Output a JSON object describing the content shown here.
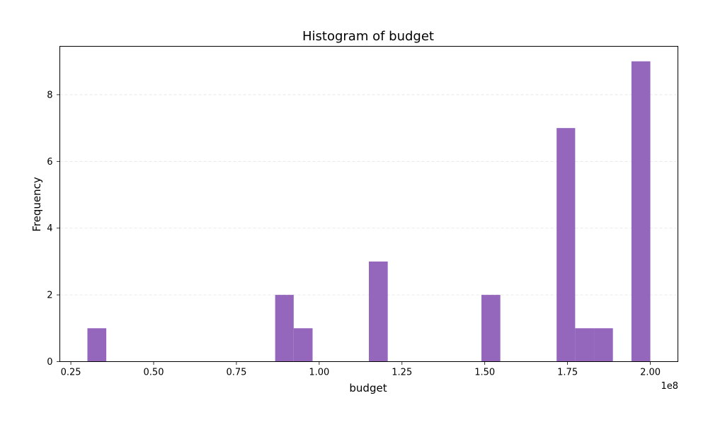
{
  "chart_data": {
    "type": "bar",
    "subtype": "histogram",
    "title": "Histogram of budget",
    "xlabel": "budget",
    "ylabel": "Frequency",
    "x_offset_label": "1e8",
    "xlim": [
      0.2167,
      2.0833
    ],
    "ylim": [
      0,
      9.45
    ],
    "x_ticks": [
      0.25,
      0.5,
      0.75,
      1.0,
      1.25,
      1.5,
      1.75,
      2.0
    ],
    "x_tick_labels": [
      "0.25",
      "0.50",
      "0.75",
      "1.00",
      "1.25",
      "1.50",
      "1.75",
      "2.00"
    ],
    "y_ticks": [
      0,
      2,
      4,
      6,
      8
    ],
    "y_tick_labels": [
      "0",
      "2",
      "4",
      "6",
      "8"
    ],
    "grid": {
      "y": true,
      "x": false,
      "style": "dashed"
    },
    "bar_color": "#9467bd",
    "bins": [
      {
        "x0": 0.3,
        "x1": 0.357,
        "count": 1
      },
      {
        "x0": 0.867,
        "x1": 0.923,
        "count": 2
      },
      {
        "x0": 0.923,
        "x1": 0.98,
        "count": 1
      },
      {
        "x0": 1.15,
        "x1": 1.207,
        "count": 3
      },
      {
        "x0": 1.49,
        "x1": 1.547,
        "count": 2
      },
      {
        "x0": 1.717,
        "x1": 1.773,
        "count": 7
      },
      {
        "x0": 1.773,
        "x1": 1.83,
        "count": 1
      },
      {
        "x0": 1.83,
        "x1": 1.887,
        "count": 1
      },
      {
        "x0": 1.943,
        "x1": 2.0,
        "count": 9
      }
    ]
  }
}
